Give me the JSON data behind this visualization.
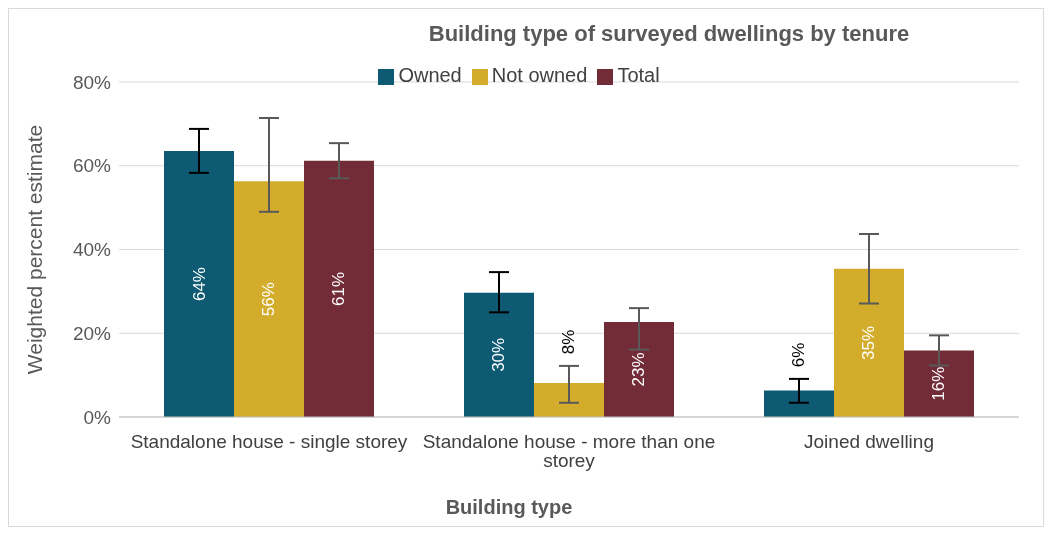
{
  "chart_data": {
    "type": "bar",
    "title": "Building type of surveyed dwellings by tenure",
    "xlabel": "Building type",
    "ylabel": "Weighted percent estimate",
    "categories": [
      "Standalone house - single storey",
      "Standalone house - more than one storey",
      "Joined dwelling"
    ],
    "series": [
      {
        "name": "Owned",
        "color": "#0e5a73",
        "values": [
          63.5,
          29.7,
          6.3
        ],
        "errors": [
          [
            58.3,
            68.8
          ],
          [
            25.0,
            34.6
          ],
          [
            3.4,
            9.1
          ]
        ],
        "value_labels": [
          "64%",
          "30%",
          "6%"
        ]
      },
      {
        "name": "Not owned",
        "color": "#d4ac2c",
        "values": [
          56.3,
          8.1,
          35.4
        ],
        "errors": [
          [
            49.0,
            71.4
          ],
          [
            3.4,
            12.2
          ],
          [
            27.1,
            43.7
          ]
        ],
        "value_labels": [
          "56%",
          "8%",
          "35%"
        ]
      },
      {
        "name": "Total",
        "color": "#722c37",
        "values": [
          61.2,
          22.7,
          15.9
        ],
        "errors": [
          [
            57.0,
            65.4
          ],
          [
            16.1,
            26.0
          ],
          [
            12.3,
            19.5
          ]
        ],
        "value_labels": [
          "61%",
          "23%",
          "16%"
        ]
      }
    ],
    "ylim": [
      0,
      80
    ],
    "yticks": [
      {
        "value": 0,
        "label": "0%"
      },
      {
        "value": 20,
        "label": "20%"
      },
      {
        "value": 40,
        "label": "40%"
      },
      {
        "value": 60,
        "label": "60%"
      },
      {
        "value": 80,
        "label": "80%"
      }
    ],
    "grid": "y",
    "legend": "top"
  }
}
